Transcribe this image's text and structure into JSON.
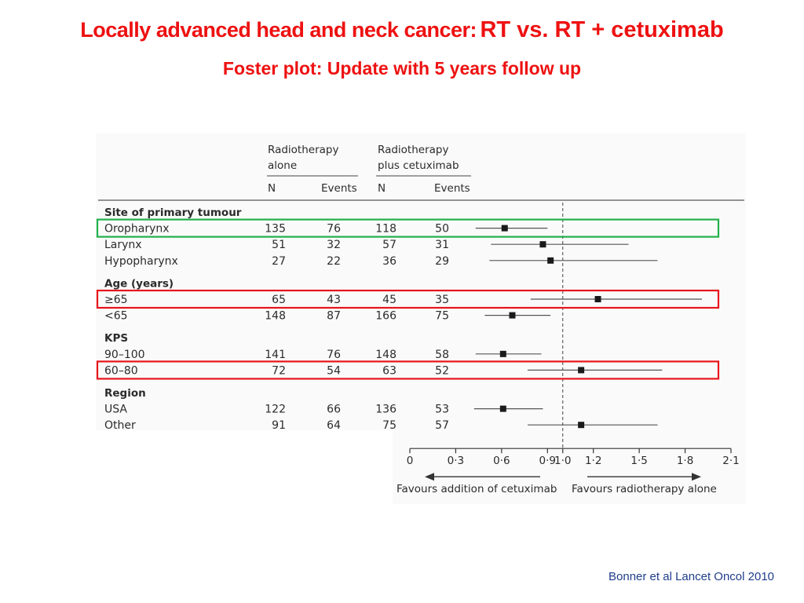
{
  "slide": {
    "title_part1": "Locally advanced head and neck cancer:",
    "title_part2": "RT vs. RT + cetuximab",
    "subtitle": "Foster plot: Update with 5 years follow up",
    "citation": "Bonner et al Lancet Oncol 2010"
  },
  "table_headers": {
    "rt_alone": [
      "Radiotherapy",
      "alone"
    ],
    "rt_cetux": [
      "Radiotherapy",
      "plus cetuximab"
    ],
    "n": "N",
    "events": "Events"
  },
  "colors": {
    "title": "#ee1111",
    "highlight_green": "#22b04b",
    "highlight_red": "#e8141b",
    "citation": "#1f3d8a"
  },
  "chart_data": {
    "type": "forest",
    "xlim": [
      0,
      2.1
    ],
    "x_tick_values": [
      0,
      0.3,
      0.6,
      0.9,
      1.0,
      1.2,
      1.5,
      1.8,
      2.1
    ],
    "x_tick_labels": [
      "0",
      "0·3",
      "0·6",
      "0·9",
      "1·0",
      "1·2",
      "1·5",
      "1·8",
      "2·1"
    ],
    "reference_line": 1.0,
    "favours_left": "Favours addition of cetuximab",
    "favours_right": "Favours radiotherapy alone",
    "groups": [
      {
        "title": "Site of primary tumour",
        "rows": [
          {
            "label": "Oropharynx",
            "rt_n": "135",
            "rt_events": "76",
            "cx_n": "118",
            "cx_events": "50",
            "hr": 0.62,
            "ci": [
              0.43,
              0.9
            ],
            "highlight": "green"
          },
          {
            "label": "Larynx",
            "rt_n": "51",
            "rt_events": "32",
            "cx_n": "57",
            "cx_events": "31",
            "hr": 0.87,
            "ci": [
              0.53,
              1.43
            ]
          },
          {
            "label": "Hypopharynx",
            "rt_n": "27",
            "rt_events": "22",
            "cx_n": "36",
            "cx_events": "29",
            "hr": 0.92,
            "ci": [
              0.52,
              1.62
            ]
          }
        ]
      },
      {
        "title": "Age (years)",
        "rows": [
          {
            "label": "≥65",
            "rt_n": "65",
            "rt_events": "43",
            "cx_n": "45",
            "cx_events": "35",
            "hr": 1.23,
            "ci": [
              0.79,
              1.91
            ],
            "highlight": "red"
          },
          {
            "label": "<65",
            "rt_n": "148",
            "rt_events": "87",
            "cx_n": "166",
            "cx_events": "75",
            "hr": 0.67,
            "ci": [
              0.49,
              0.92
            ]
          }
        ]
      },
      {
        "title": "KPS",
        "rows": [
          {
            "label": "90–100",
            "rt_n": "141",
            "rt_events": "76",
            "cx_n": "148",
            "cx_events": "58",
            "hr": 0.61,
            "ci": [
              0.43,
              0.86
            ]
          },
          {
            "label": "60–80",
            "rt_n": "72",
            "rt_events": "54",
            "cx_n": "63",
            "cx_events": "52",
            "hr": 1.12,
            "ci": [
              0.77,
              1.65
            ],
            "highlight": "red"
          }
        ]
      },
      {
        "title": "Region",
        "rows": [
          {
            "label": "USA",
            "rt_n": "122",
            "rt_events": "66",
            "cx_n": "136",
            "cx_events": "53",
            "hr": 0.61,
            "ci": [
              0.42,
              0.87
            ]
          },
          {
            "label": "Other",
            "rt_n": "91",
            "rt_events": "64",
            "cx_n": "75",
            "cx_events": "57",
            "hr": 1.12,
            "ci": [
              0.77,
              1.62
            ]
          }
        ]
      }
    ]
  }
}
